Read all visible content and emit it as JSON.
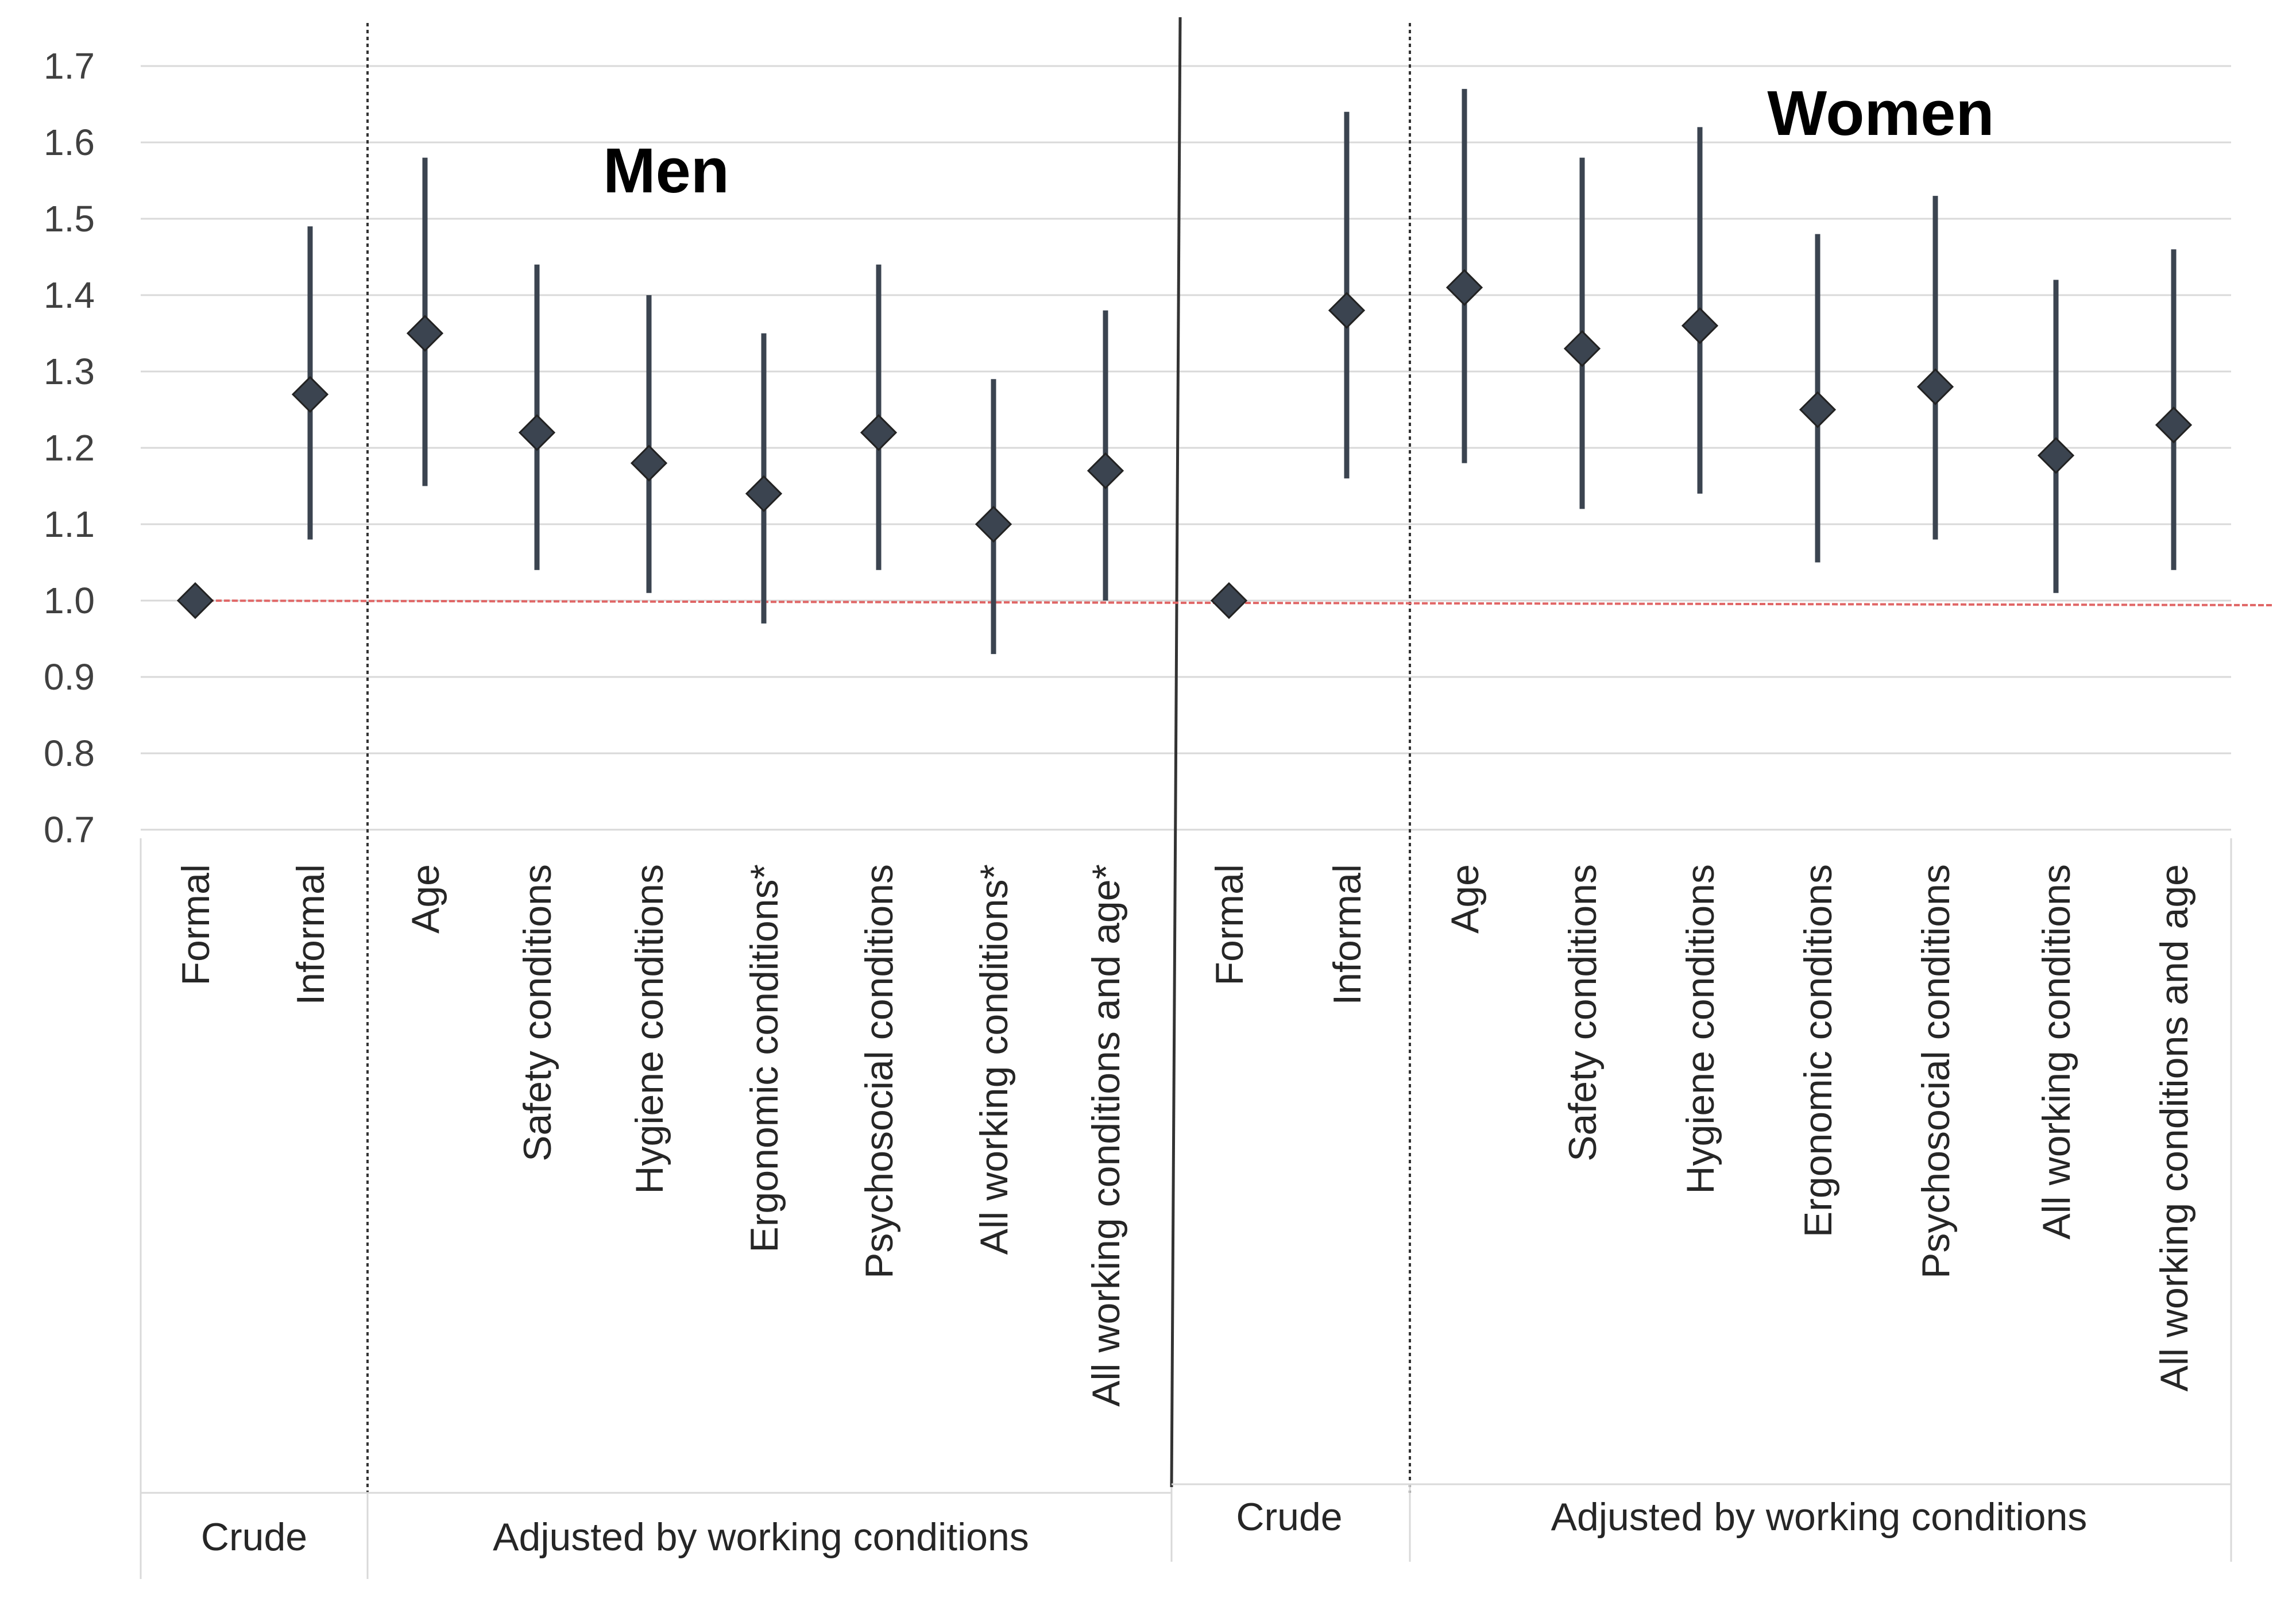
{
  "chart_data": {
    "type": "scatter",
    "subtype": "point-estimate-with-error-bars",
    "ylim": [
      0.7,
      1.7
    ],
    "yticks": [
      0.7,
      0.8,
      0.9,
      1.0,
      1.1,
      1.2,
      1.3,
      1.4,
      1.5,
      1.6,
      1.7
    ],
    "ytick_labels": [
      "0.7",
      "0.8",
      "0.9",
      "1.0",
      "1.1",
      "1.2",
      "1.3",
      "1.4",
      "1.5",
      "1.6",
      "1.7"
    ],
    "reference_line": 1.0,
    "colors": {
      "marker": "#3b4450",
      "reference": "#e06666",
      "grid": "#d9d9d9"
    },
    "panels": [
      {
        "title": "Men",
        "groups": [
          {
            "label": "Crude",
            "categories": [
              "Formal",
              "Informal"
            ]
          },
          {
            "label": "Adjusted by working conditions",
            "categories": [
              "Age",
              "Safety conditions",
              "Hygiene conditions",
              "Ergonomic conditions*",
              "Psychosocial conditions",
              "All working conditions*",
              "All working conditions and age*"
            ]
          }
        ],
        "points": [
          {
            "category": "Formal",
            "estimate": 1.0,
            "lower": 1.0,
            "upper": 1.0
          },
          {
            "category": "Informal",
            "estimate": 1.27,
            "lower": 1.08,
            "upper": 1.49
          },
          {
            "category": "Age",
            "estimate": 1.35,
            "lower": 1.15,
            "upper": 1.58
          },
          {
            "category": "Safety conditions",
            "estimate": 1.22,
            "lower": 1.04,
            "upper": 1.44
          },
          {
            "category": "Hygiene conditions",
            "estimate": 1.18,
            "lower": 1.01,
            "upper": 1.4
          },
          {
            "category": "Ergonomic conditions*",
            "estimate": 1.14,
            "lower": 0.97,
            "upper": 1.35
          },
          {
            "category": "Psychosocial conditions",
            "estimate": 1.22,
            "lower": 1.04,
            "upper": 1.44
          },
          {
            "category": "All working conditions*",
            "estimate": 1.1,
            "lower": 0.93,
            "upper": 1.29
          },
          {
            "category": "All working conditions and age*",
            "estimate": 1.17,
            "lower": 1.0,
            "upper": 1.38
          }
        ]
      },
      {
        "title": "Women",
        "groups": [
          {
            "label": "Crude",
            "categories": [
              "Formal",
              "Informal"
            ]
          },
          {
            "label": "Adjusted by working conditions",
            "categories": [
              "Age",
              "Safety conditions",
              "Hygiene conditions",
              "Ergonomic conditions",
              "Psychosocial conditions",
              "All working conditions",
              "All working conditions and age"
            ]
          }
        ],
        "points": [
          {
            "category": "Formal",
            "estimate": 1.0,
            "lower": 1.0,
            "upper": 1.0
          },
          {
            "category": "Informal",
            "estimate": 1.38,
            "lower": 1.16,
            "upper": 1.64
          },
          {
            "category": "Age",
            "estimate": 1.41,
            "lower": 1.18,
            "upper": 1.67
          },
          {
            "category": "Safety conditions",
            "estimate": 1.33,
            "lower": 1.12,
            "upper": 1.58
          },
          {
            "category": "Hygiene conditions",
            "estimate": 1.36,
            "lower": 1.14,
            "upper": 1.62
          },
          {
            "category": "Ergonomic conditions",
            "estimate": 1.25,
            "lower": 1.05,
            "upper": 1.48
          },
          {
            "category": "Psychosocial conditions",
            "estimate": 1.28,
            "lower": 1.08,
            "upper": 1.53
          },
          {
            "category": "All working conditions",
            "estimate": 1.19,
            "lower": 1.01,
            "upper": 1.42
          },
          {
            "category": "All working conditions and age",
            "estimate": 1.23,
            "lower": 1.04,
            "upper": 1.46
          }
        ]
      }
    ]
  }
}
